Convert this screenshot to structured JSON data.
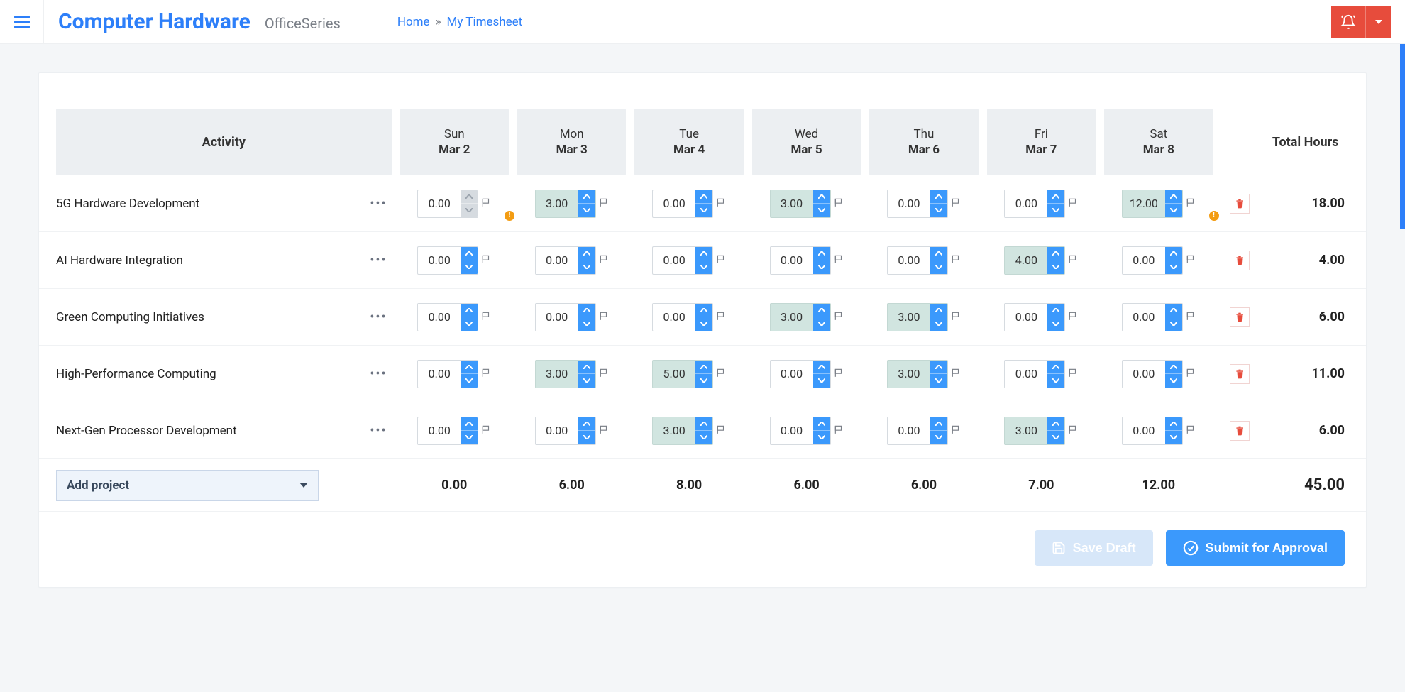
{
  "header": {
    "brand_title": "Computer Hardware",
    "brand_sub": "OfficeSeries",
    "breadcrumb_home": "Home",
    "breadcrumb_sep": "»",
    "breadcrumb_current": "My Timesheet"
  },
  "colors": {
    "primary": "#2d7ff9",
    "accent": "#3b99fc",
    "danger": "#e74c3c",
    "header_cell_bg": "#eceff2",
    "filled_bg": "#d1e5e0",
    "page_bg": "#f4f6f8",
    "warn": "#f39c12"
  },
  "columns": {
    "activity_label": "Activity",
    "total_label": "Total Hours",
    "days": [
      {
        "dow": "Sun",
        "date": "Mar 2"
      },
      {
        "dow": "Mon",
        "date": "Mar 3"
      },
      {
        "dow": "Tue",
        "date": "Mar 4"
      },
      {
        "dow": "Wed",
        "date": "Mar 5"
      },
      {
        "dow": "Thu",
        "date": "Mar 6"
      },
      {
        "dow": "Fri",
        "date": "Mar 7"
      },
      {
        "dow": "Sat",
        "date": "Mar 8"
      }
    ]
  },
  "rows": [
    {
      "activity": "5G Hardware Development",
      "cells": [
        {
          "value": "0.00",
          "filled": false,
          "disabled": true,
          "warn": true
        },
        {
          "value": "3.00",
          "filled": true,
          "disabled": false,
          "warn": false
        },
        {
          "value": "0.00",
          "filled": false,
          "disabled": false,
          "warn": false
        },
        {
          "value": "3.00",
          "filled": true,
          "disabled": false,
          "warn": false
        },
        {
          "value": "0.00",
          "filled": false,
          "disabled": false,
          "warn": false
        },
        {
          "value": "0.00",
          "filled": false,
          "disabled": false,
          "warn": false
        },
        {
          "value": "12.00",
          "filled": true,
          "disabled": false,
          "warn": true
        }
      ],
      "total": "18.00"
    },
    {
      "activity": "AI Hardware Integration",
      "cells": [
        {
          "value": "0.00",
          "filled": false,
          "disabled": false,
          "warn": false
        },
        {
          "value": "0.00",
          "filled": false,
          "disabled": false,
          "warn": false
        },
        {
          "value": "0.00",
          "filled": false,
          "disabled": false,
          "warn": false
        },
        {
          "value": "0.00",
          "filled": false,
          "disabled": false,
          "warn": false
        },
        {
          "value": "0.00",
          "filled": false,
          "disabled": false,
          "warn": false
        },
        {
          "value": "4.00",
          "filled": true,
          "disabled": false,
          "warn": false
        },
        {
          "value": "0.00",
          "filled": false,
          "disabled": false,
          "warn": false
        }
      ],
      "total": "4.00"
    },
    {
      "activity": "Green Computing Initiatives",
      "cells": [
        {
          "value": "0.00",
          "filled": false,
          "disabled": false,
          "warn": false
        },
        {
          "value": "0.00",
          "filled": false,
          "disabled": false,
          "warn": false
        },
        {
          "value": "0.00",
          "filled": false,
          "disabled": false,
          "warn": false
        },
        {
          "value": "3.00",
          "filled": true,
          "disabled": false,
          "warn": false
        },
        {
          "value": "3.00",
          "filled": true,
          "disabled": false,
          "warn": false
        },
        {
          "value": "0.00",
          "filled": false,
          "disabled": false,
          "warn": false
        },
        {
          "value": "0.00",
          "filled": false,
          "disabled": false,
          "warn": false
        }
      ],
      "total": "6.00"
    },
    {
      "activity": "High-Performance Computing",
      "cells": [
        {
          "value": "0.00",
          "filled": false,
          "disabled": false,
          "warn": false
        },
        {
          "value": "3.00",
          "filled": true,
          "disabled": false,
          "warn": false
        },
        {
          "value": "5.00",
          "filled": true,
          "disabled": false,
          "warn": false
        },
        {
          "value": "0.00",
          "filled": false,
          "disabled": false,
          "warn": false
        },
        {
          "value": "3.00",
          "filled": true,
          "disabled": false,
          "warn": false
        },
        {
          "value": "0.00",
          "filled": false,
          "disabled": false,
          "warn": false
        },
        {
          "value": "0.00",
          "filled": false,
          "disabled": false,
          "warn": false
        }
      ],
      "total": "11.00"
    },
    {
      "activity": "Next-Gen Processor Development",
      "cells": [
        {
          "value": "0.00",
          "filled": false,
          "disabled": false,
          "warn": false
        },
        {
          "value": "0.00",
          "filled": false,
          "disabled": false,
          "warn": false
        },
        {
          "value": "3.00",
          "filled": true,
          "disabled": false,
          "warn": false
        },
        {
          "value": "0.00",
          "filled": false,
          "disabled": false,
          "warn": false
        },
        {
          "value": "0.00",
          "filled": false,
          "disabled": false,
          "warn": false
        },
        {
          "value": "3.00",
          "filled": true,
          "disabled": false,
          "warn": false
        },
        {
          "value": "0.00",
          "filled": false,
          "disabled": false,
          "warn": false
        }
      ],
      "total": "6.00"
    }
  ],
  "footer": {
    "add_project_label": "Add project",
    "day_totals": [
      "0.00",
      "6.00",
      "8.00",
      "6.00",
      "6.00",
      "7.00",
      "12.00"
    ],
    "grand_total": "45.00"
  },
  "actions": {
    "save_draft": "Save Draft",
    "submit": "Submit for Approval"
  }
}
